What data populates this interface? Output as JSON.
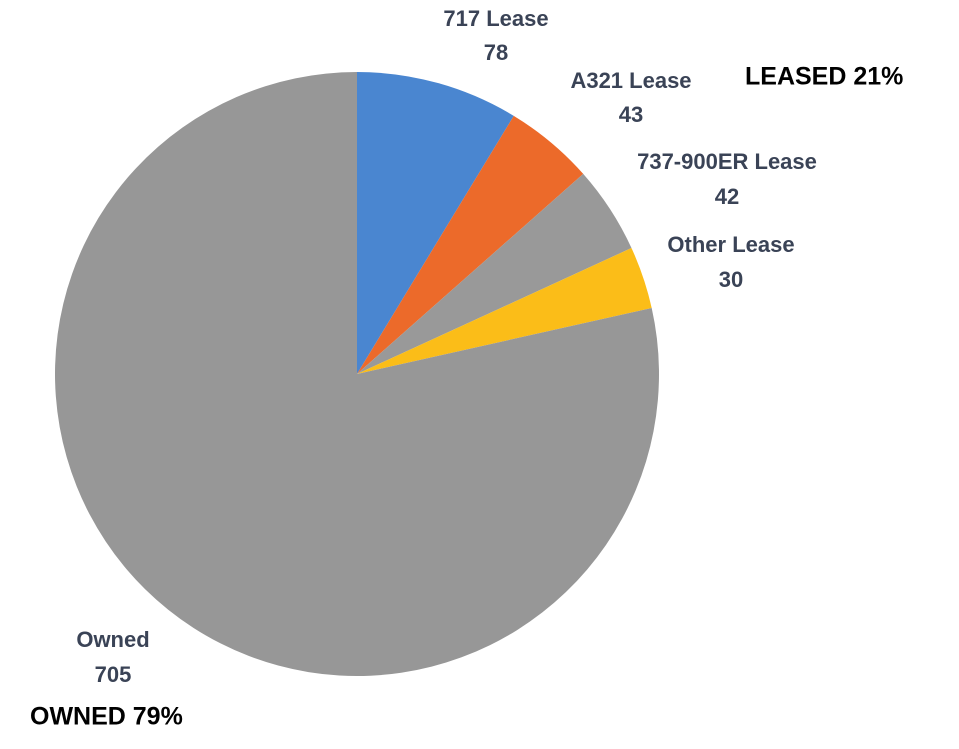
{
  "chart_data": {
    "type": "pie",
    "categories": [
      "717 Lease",
      "A321 Lease",
      "737-900ER Lease",
      "Other Lease",
      "Owned"
    ],
    "values": [
      78,
      43,
      42,
      30,
      705
    ],
    "colors": [
      "#4a86d0",
      "#ec6a2a",
      "#999999",
      "#fbbd18",
      "#979797"
    ],
    "annotations": [
      "LEASED 21%",
      "OWNED 79%"
    ]
  }
}
